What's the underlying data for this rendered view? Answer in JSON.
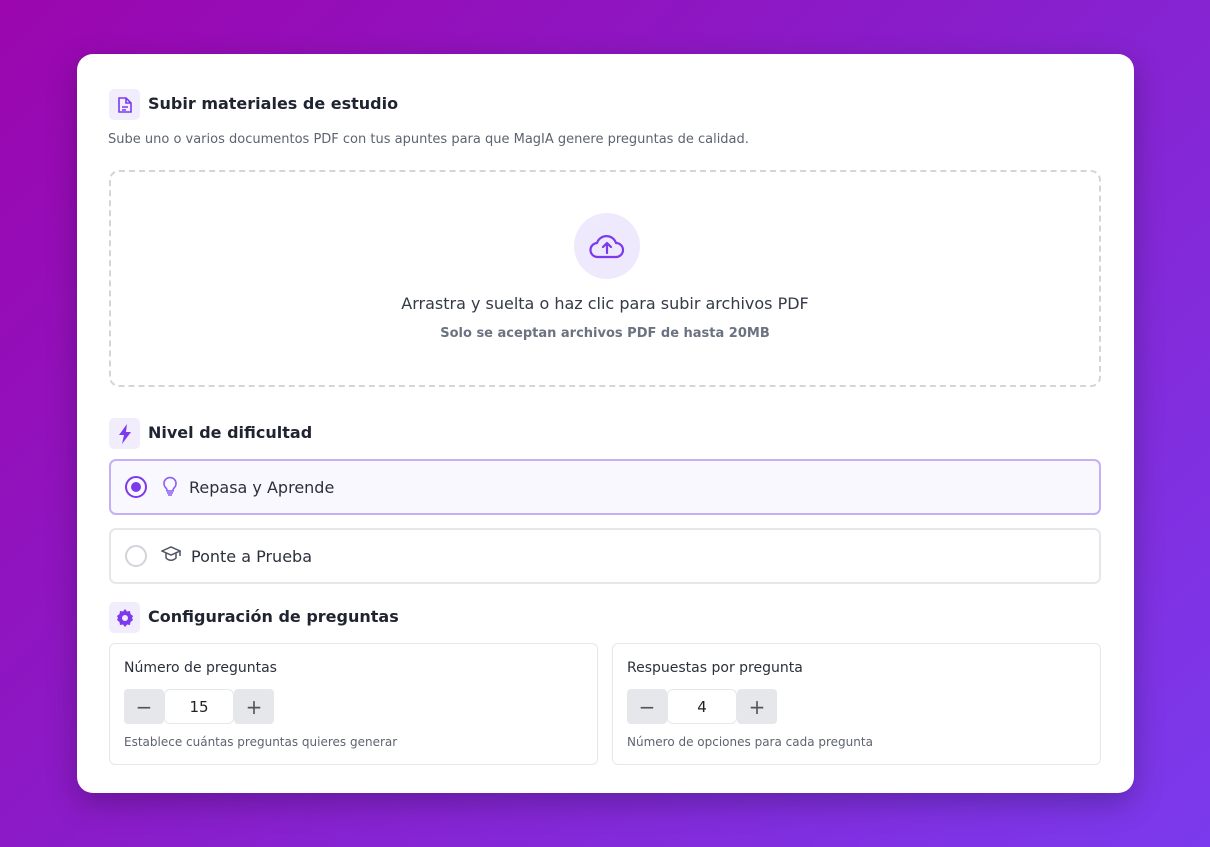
{
  "upload": {
    "title": "Subir materiales de estudio",
    "description": "Sube uno o varios documentos PDF con tus apuntes para que MagIA genere preguntas de calidad.",
    "drop_text": "Arrastra y suelta o haz clic para subir archivos PDF",
    "drop_hint": "Solo se aceptan archivos PDF de hasta 20MB"
  },
  "difficulty": {
    "title": "Nivel de dificultad",
    "options": [
      {
        "label": "Repasa y Aprende",
        "icon": "lightbulb-icon",
        "selected": true
      },
      {
        "label": "Ponte a Prueba",
        "icon": "graduation-cap-icon",
        "selected": false
      }
    ]
  },
  "config": {
    "title": "Configuración de preguntas",
    "questions": {
      "label": "Número de preguntas",
      "value": "15",
      "help": "Establece cuántas preguntas quieres generar",
      "minus": "−",
      "plus": "+"
    },
    "answers": {
      "label": "Respuestas por pregunta",
      "value": "4",
      "help": "Número de opciones para cada pregunta",
      "minus": "−",
      "plus": "+"
    }
  },
  "colors": {
    "accent": "#7c3aed",
    "accent_light": "#f1edfd"
  }
}
